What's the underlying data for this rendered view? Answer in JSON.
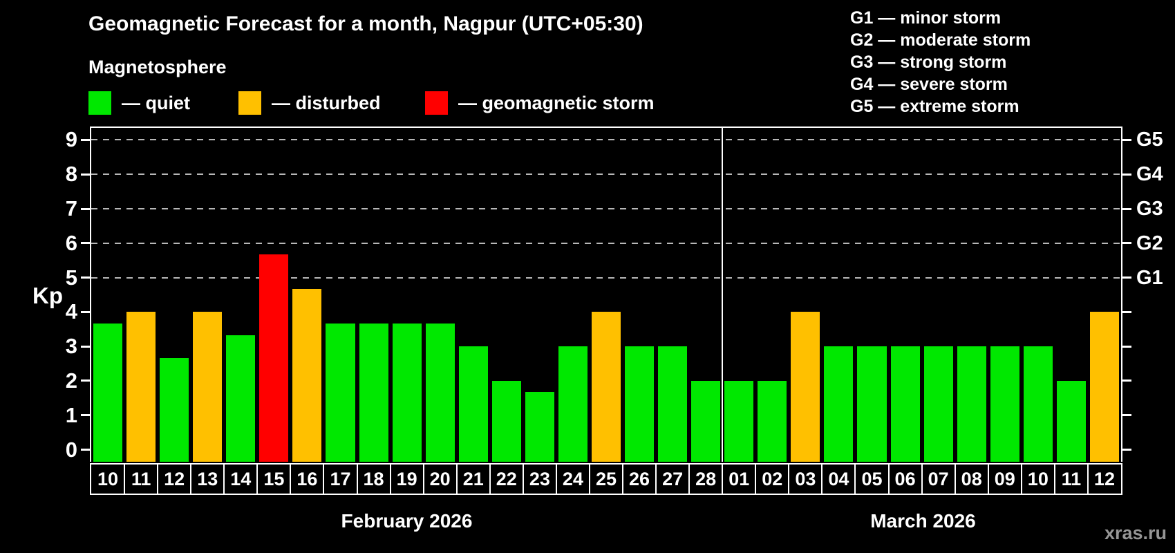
{
  "title": "Geomagnetic Forecast for a month, Nagpur (UTC+05:30)",
  "subtitle": "Magnetosphere",
  "legend": {
    "items": [
      {
        "key": "quiet",
        "label": "— quiet"
      },
      {
        "key": "disturbed",
        "label": "— disturbed"
      },
      {
        "key": "storm",
        "label": "— geomagnetic storm"
      }
    ]
  },
  "g_legend": {
    "items": [
      "G1 — minor storm",
      "G2 — moderate storm",
      "G3 — strong storm",
      "G4 — severe storm",
      "G5 — extreme storm"
    ]
  },
  "colors": {
    "quiet": "#00e800",
    "disturbed": "#ffc000",
    "storm": "#ff0000",
    "grid": "#b8b8b8",
    "axis": "#ffffff",
    "watermark": "#969696"
  },
  "watermark": "xras.ru",
  "chart_data": {
    "type": "bar",
    "title": "Geomagnetic Forecast for a month, Nagpur (UTC+05:30)",
    "ylabel": "Kp",
    "ylim": [
      -0.35,
      9.35
    ],
    "y_ticks": [
      0,
      1,
      2,
      3,
      4,
      5,
      6,
      7,
      8,
      9
    ],
    "grid_levels": [
      5,
      6,
      7,
      8,
      9
    ],
    "grid": "dashed-at-storm-levels-only",
    "legend_position": "top",
    "right_axis": [
      {
        "value": 5,
        "label": "G1"
      },
      {
        "value": 6,
        "label": "G2"
      },
      {
        "value": 7,
        "label": "G3"
      },
      {
        "value": 8,
        "label": "G4"
      },
      {
        "value": 9,
        "label": "G5"
      }
    ],
    "months": [
      {
        "label": "February 2026",
        "bars": [
          {
            "day": "10",
            "kp": 3.67,
            "status": "quiet"
          },
          {
            "day": "11",
            "kp": 4.0,
            "status": "disturbed"
          },
          {
            "day": "12",
            "kp": 2.67,
            "status": "quiet"
          },
          {
            "day": "13",
            "kp": 4.0,
            "status": "disturbed"
          },
          {
            "day": "14",
            "kp": 3.33,
            "status": "quiet"
          },
          {
            "day": "15",
            "kp": 5.67,
            "status": "storm"
          },
          {
            "day": "16",
            "kp": 4.67,
            "status": "disturbed"
          },
          {
            "day": "17",
            "kp": 3.67,
            "status": "quiet"
          },
          {
            "day": "18",
            "kp": 3.67,
            "status": "quiet"
          },
          {
            "day": "19",
            "kp": 3.67,
            "status": "quiet"
          },
          {
            "day": "20",
            "kp": 3.67,
            "status": "quiet"
          },
          {
            "day": "21",
            "kp": 3.0,
            "status": "quiet"
          },
          {
            "day": "22",
            "kp": 2.0,
            "status": "quiet"
          },
          {
            "day": "23",
            "kp": 1.67,
            "status": "quiet"
          },
          {
            "day": "24",
            "kp": 3.0,
            "status": "quiet"
          },
          {
            "day": "25",
            "kp": 4.0,
            "status": "disturbed"
          },
          {
            "day": "26",
            "kp": 3.0,
            "status": "quiet"
          },
          {
            "day": "27",
            "kp": 3.0,
            "status": "quiet"
          },
          {
            "day": "28",
            "kp": 2.0,
            "status": "quiet"
          }
        ]
      },
      {
        "label": "March 2026",
        "bars": [
          {
            "day": "01",
            "kp": 2.0,
            "status": "quiet"
          },
          {
            "day": "02",
            "kp": 2.0,
            "status": "quiet"
          },
          {
            "day": "03",
            "kp": 4.0,
            "status": "disturbed"
          },
          {
            "day": "04",
            "kp": 3.0,
            "status": "quiet"
          },
          {
            "day": "05",
            "kp": 3.0,
            "status": "quiet"
          },
          {
            "day": "06",
            "kp": 3.0,
            "status": "quiet"
          },
          {
            "day": "07",
            "kp": 3.0,
            "status": "quiet"
          },
          {
            "day": "08",
            "kp": 3.0,
            "status": "quiet"
          },
          {
            "day": "09",
            "kp": 3.0,
            "status": "quiet"
          },
          {
            "day": "10",
            "kp": 3.0,
            "status": "quiet"
          },
          {
            "day": "11",
            "kp": 2.0,
            "status": "quiet"
          },
          {
            "day": "12",
            "kp": 4.0,
            "status": "disturbed"
          }
        ]
      }
    ]
  }
}
